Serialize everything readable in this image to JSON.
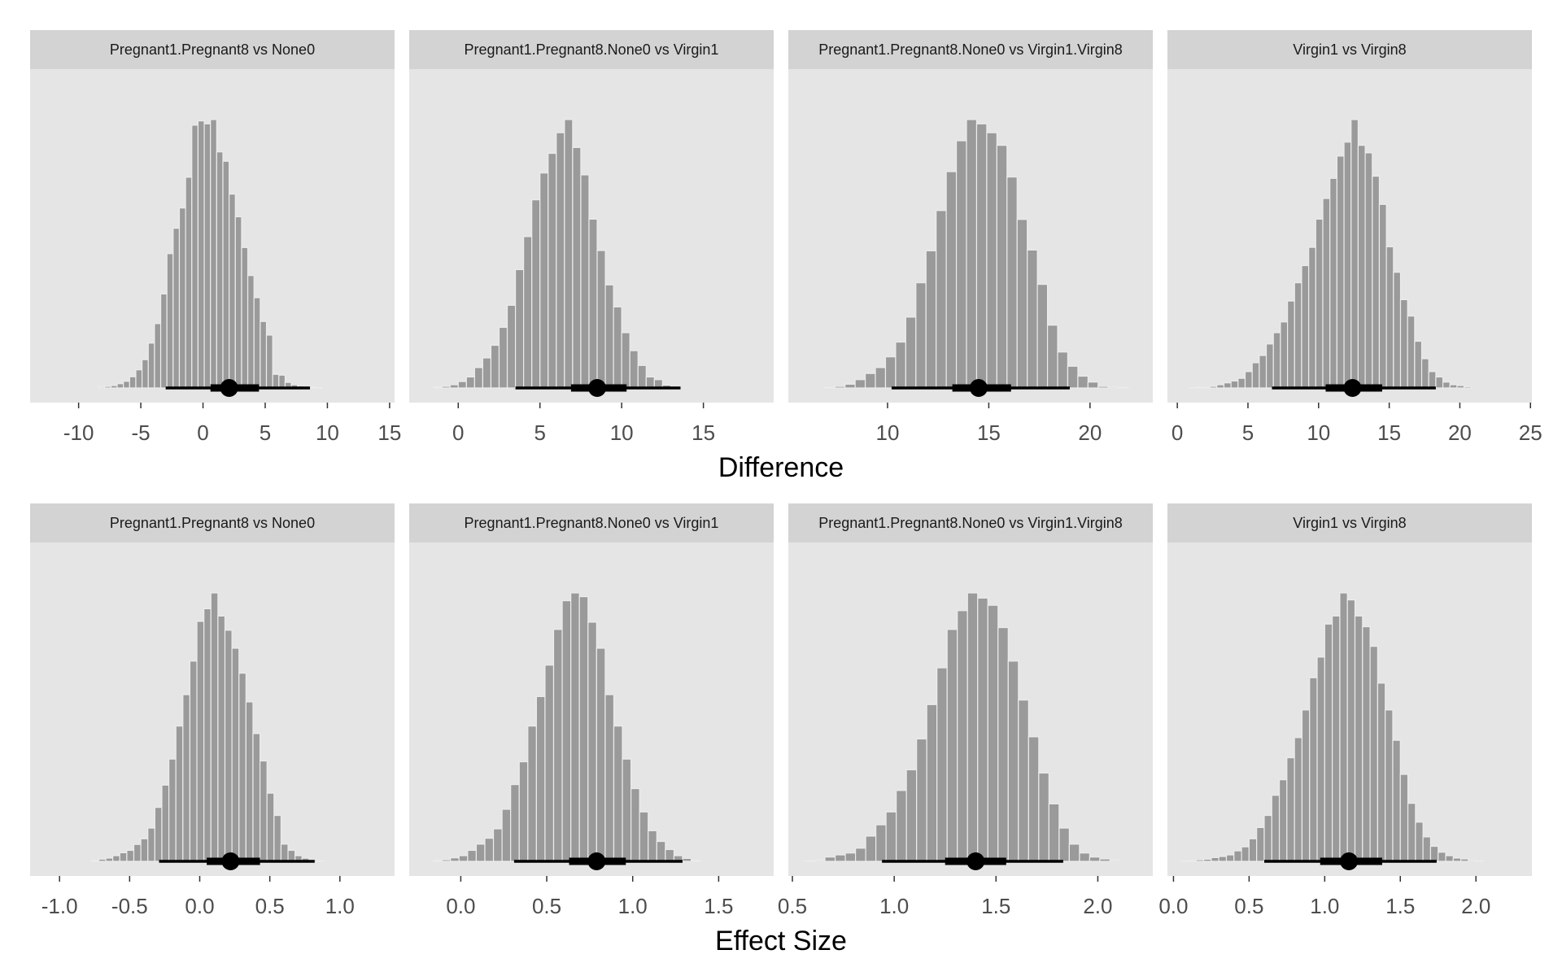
{
  "chart_data": {
    "type": "bar",
    "style": {
      "panel_background": "#e5e5e5",
      "strip_background": "#d3d3d3",
      "bar_color": "#9a9a9a",
      "bar_outline": "#ececec",
      "interval_color": "#000000",
      "grid": false
    },
    "rows": [
      {
        "xlabel": "Difference",
        "panels": [
          {
            "title": "Pregnant1.Pregnant8 vs None0",
            "xlim": [
              -13.9,
              15.4
            ],
            "ticks": [
              -10,
              -5,
              0,
              5,
              10,
              15
            ],
            "tick_labels": [
              "-10",
              "-5",
              "0",
              "5",
              "10",
              "15"
            ],
            "bin_start": -8.4,
            "bin_width": 0.5,
            "counts": [
              0.4,
              0.6,
              0.9,
              1.6,
              2.5,
              4.2,
              6.8,
              10.6,
              16.8,
              24.1,
              35.2,
              50.3,
              59.8,
              67.4,
              78.9,
              98.4,
              100,
              98.9,
              100.5,
              88.4,
              84.9,
              72.6,
              64.1,
              52.6,
              42.1,
              33.8,
              24.9,
              19.8,
              5.1,
              4.8,
              2.1,
              1.2,
              0.8,
              0.3,
              0.3,
              0.1
            ],
            "median": 2.1,
            "interval_66": [
              0.6,
              4.5
            ],
            "interval_95": [
              -3.0,
              8.6
            ]
          },
          {
            "title": "Pregnant1.Pregnant8.None0 vs Virgin1",
            "xlim": [
              -3.0,
              19.3
            ],
            "ticks": [
              0,
              5,
              10,
              15
            ],
            "tick_labels": [
              "0",
              "5",
              "10",
              "15"
            ],
            "bin_start": -1.5,
            "bin_width": 0.5,
            "counts": [
              0.3,
              0.6,
              1.2,
              2.4,
              4.1,
              7.6,
              11.2,
              15.9,
              22.6,
              30.8,
              44.1,
              56.4,
              70.1,
              80.1,
              87.4,
              95.1,
              100,
              89.6,
              79.4,
              62.9,
              51.2,
              38.4,
              30.2,
              20.6,
              13.9,
              8.4,
              4.1,
              3.1,
              1.1,
              0.4
            ],
            "median": 8.5,
            "interval_66": [
              6.9,
              10.3
            ],
            "interval_95": [
              3.5,
              13.6
            ]
          },
          {
            "title": "Pregnant1.Pregnant8.None0 vs Virgin1.Virgin8",
            "xlim": [
              5.1,
              23.1
            ],
            "ticks": [
              10,
              15,
              20
            ],
            "tick_labels": [
              "10",
              "15",
              "20"
            ],
            "bin_start": 6.9,
            "bin_width": 0.5,
            "counts": [
              0.2,
              0.6,
              1.4,
              3.1,
              5.4,
              7.6,
              11.6,
              17.1,
              26.4,
              39.2,
              51.1,
              66.1,
              80.6,
              92.1,
              100,
              98.4,
              95.1,
              90.4,
              78.6,
              62.8,
              51.4,
              38.6,
              23.4,
              13.4,
              8.1,
              4.4,
              2.2,
              0.6,
              0.4,
              0.2
            ],
            "median": 14.5,
            "interval_66": [
              13.2,
              16.1
            ],
            "interval_95": [
              10.2,
              19.0
            ]
          },
          {
            "title": "Virgin1 vs Virgin8",
            "xlim": [
              -0.7,
              25.1
            ],
            "ticks": [
              0,
              5,
              10,
              15,
              20,
              25
            ],
            "tick_labels": [
              "0",
              "5",
              "10",
              "15",
              "20",
              "25"
            ],
            "bin_start": 0.8,
            "bin_width": 0.5,
            "counts": [
              0.1,
              0.3,
              0.2,
              0.6,
              1.2,
              1.9,
              2.6,
              3.6,
              6.1,
              9.4,
              12.1,
              16.4,
              20.6,
              24.6,
              32.4,
              39.2,
              45.6,
              52.4,
              62.9,
              70.6,
              78.1,
              86.4,
              91.6,
              100,
              90.4,
              87.6,
              78.9,
              68.4,
              52.6,
              43.1,
              32.9,
              26.8,
              17.4,
              10.9,
              6.1,
              4.1,
              2.2,
              1.2,
              0.9,
              0.5
            ],
            "median": 12.4,
            "interval_66": [
              10.5,
              14.5
            ],
            "interval_95": [
              6.7,
              18.3
            ]
          }
        ]
      },
      {
        "xlabel": "Effect Size",
        "panels": [
          {
            "title": "Pregnant1.Pregnant8 vs None0",
            "xlim": [
              -1.21,
              1.39
            ],
            "ticks": [
              -1.0,
              -0.5,
              0.0,
              0.5,
              1.0
            ],
            "tick_labels": [
              "-1.0",
              "-0.5",
              "0.0",
              "0.5",
              "1.0"
            ],
            "bin_start": -0.77,
            "bin_width": 0.05,
            "counts": [
              0.3,
              0.8,
              1.2,
              2.1,
              3.2,
              4.1,
              6.3,
              8.4,
              12.4,
              20.1,
              28.4,
              38.1,
              50.4,
              62.1,
              74.6,
              89.4,
              94.1,
              100,
              91.4,
              86.1,
              79.4,
              70.1,
              59.4,
              47.6,
              37.4,
              25.4,
              17.1,
              6.4,
              4.1,
              2.1,
              1.2,
              0.6,
              0.2
            ],
            "median": 0.22,
            "interval_66": [
              0.05,
              0.43
            ],
            "interval_95": [
              -0.29,
              0.82
            ]
          },
          {
            "title": "Pregnant1.Pregnant8.None0 vs Virgin1",
            "xlim": [
              -0.3,
              1.82
            ],
            "ticks": [
              0.0,
              0.5,
              1.0,
              1.5
            ],
            "tick_labels": [
              "0.0",
              "0.5",
              "1.0",
              "1.5"
            ],
            "bin_start": -0.16,
            "bin_width": 0.05,
            "counts": [
              0.3,
              0.6,
              1.3,
              2.1,
              4.1,
              6.4,
              8.6,
              12.1,
              19.4,
              28.6,
              37.1,
              50.4,
              61.4,
              73.1,
              86.4,
              97.1,
              100,
              98.6,
              89.1,
              79.4,
              62.1,
              50.4,
              38.1,
              27.1,
              18.4,
              11.4,
              7.4,
              4.4,
              2.1,
              1.1,
              0.3
            ],
            "median": 0.79,
            "interval_66": [
              0.63,
              0.96
            ],
            "interval_95": [
              0.31,
              1.29
            ]
          },
          {
            "title": "Pregnant1.Pregnant8.None0 vs Virgin1.Virgin8",
            "xlim": [
              0.48,
              2.27
            ],
            "ticks": [
              0.5,
              1.0,
              1.5,
              2.0
            ],
            "tick_labels": [
              "0.5",
              "1.0",
              "1.5",
              "2.0"
            ],
            "bin_start": 0.56,
            "bin_width": 0.05,
            "counts": [
              0.2,
              0.4,
              1.6,
              2.4,
              3.1,
              4.9,
              9.4,
              13.6,
              18.4,
              26.4,
              34.1,
              45.6,
              58.4,
              72.1,
              86.4,
              93.4,
              100,
              98.1,
              95.4,
              87.1,
              74.6,
              60.1,
              46.4,
              32.9,
              21.4,
              12.4,
              6.4,
              3.1,
              1.6,
              0.9,
              0.4
            ],
            "median": 1.4,
            "interval_66": [
              1.25,
              1.55
            ],
            "interval_95": [
              0.94,
              1.83
            ]
          },
          {
            "title": "Virgin1 vs Virgin8",
            "xlim": [
              -0.04,
              2.37
            ],
            "ticks": [
              0.0,
              0.5,
              1.0,
              1.5,
              2.0
            ],
            "tick_labels": [
              "0.0",
              "0.5",
              "1.0",
              "1.5",
              "2.0"
            ],
            "bin_start": 0.05,
            "bin_width": 0.05,
            "counts": [
              0.1,
              0.3,
              0.6,
              0.8,
              1.4,
              1.8,
              2.4,
              3.9,
              5.4,
              8.4,
              12.6,
              17.1,
              24.6,
              30.4,
              38.6,
              46.1,
              56.4,
              68.4,
              76.1,
              88.4,
              91.4,
              100,
              97.4,
              91.4,
              87.4,
              80.1,
              66.4,
              56.4,
              45.1,
              32.4,
              21.6,
              14.6,
              9.1,
              5.6,
              3.4,
              2.1,
              1.2,
              0.9,
              0.4,
              0.2
            ],
            "median": 1.16,
            "interval_66": [
              0.97,
              1.38
            ],
            "interval_95": [
              0.6,
              1.74
            ]
          }
        ]
      }
    ]
  }
}
